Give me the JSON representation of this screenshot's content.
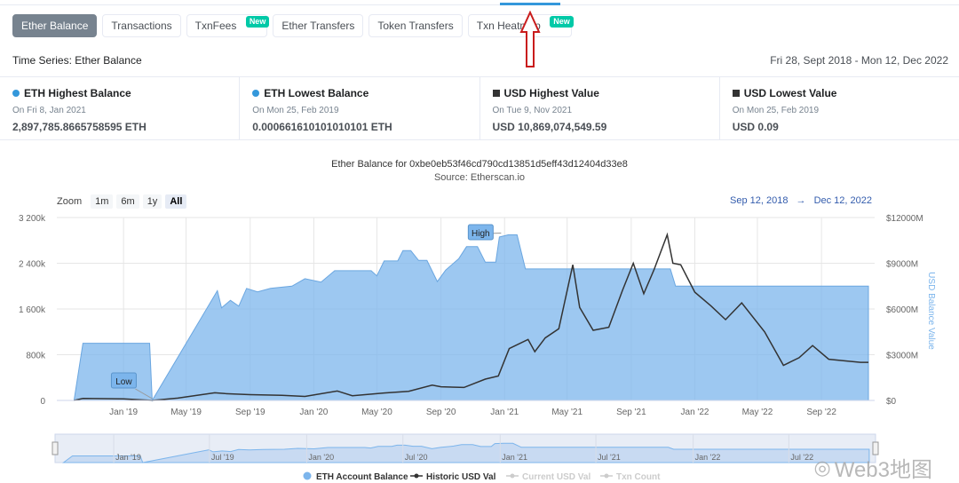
{
  "tabs": [
    {
      "label": "Ether Balance",
      "active": true
    },
    {
      "label": "Transactions"
    },
    {
      "label": "TxnFees",
      "badge": "New"
    },
    {
      "label": "Ether Transfers"
    },
    {
      "label": "Token Transfers"
    },
    {
      "label": "Txn Heatmap",
      "badge": "New"
    }
  ],
  "header": {
    "title": "Time Series: Ether Balance",
    "date_range": "Fri 28, Sept 2018 - Mon 12, Dec 2022"
  },
  "stats": [
    {
      "label": "ETH Highest Balance",
      "date": "On Fri 8, Jan 2021",
      "value": "2,897,785.8665758595 ETH",
      "marker": "dot",
      "color": "#3498db"
    },
    {
      "label": "ETH Lowest Balance",
      "date": "On Mon 25, Feb 2019",
      "value": "0.000661610101010101 ETH",
      "marker": "dot",
      "color": "#3498db"
    },
    {
      "label": "USD Highest Value",
      "date": "On Tue 9, Nov 2021",
      "value": "USD 10,869,074,549.59",
      "marker": "square",
      "color": "#333333"
    },
    {
      "label": "USD Lowest Value",
      "date": "On Mon 25, Feb 2019",
      "value": "USD 0.09",
      "marker": "square",
      "color": "#333333"
    }
  ],
  "chart_header": {
    "title": "Ether Balance for 0xbe0eb53f46cd790cd13851d5eff43d12404d33e8",
    "source": "Source: Etherscan.io"
  },
  "zoom": {
    "label": "Zoom",
    "buttons": [
      "1m",
      "6m",
      "1y",
      "All"
    ],
    "selected": "All"
  },
  "range": {
    "from": "Sep 12, 2018",
    "arrow": "→",
    "to": "Dec 12, 2022"
  },
  "chart_data": {
    "type": "area",
    "x_type": "date",
    "x_ticks": [
      "Jan '19",
      "May '19",
      "Sep '19",
      "Jan '20",
      "May '20",
      "Sep '20",
      "Jan '21",
      "May '21",
      "Sep '21",
      "Jan '22",
      "May '22",
      "Sep '22"
    ],
    "y_left": {
      "ticks": [
        "0",
        "800k",
        "1 600k",
        "2 400k",
        "3 200k"
      ],
      "range": [
        0,
        3200000
      ]
    },
    "y_right": {
      "ticks": [
        "$0",
        "$3000M",
        "$6000M",
        "$9000M",
        "$12000M"
      ],
      "range": [
        0,
        12000
      ],
      "label": "USD Balance Value"
    },
    "series": [
      {
        "name": "ETH Account Balance",
        "kind": "area",
        "color": "#7cb5ec",
        "points": [
          [
            "2018-09-28",
            0
          ],
          [
            "2018-10-15",
            1000000
          ],
          [
            "2019-02-20",
            1000000
          ],
          [
            "2019-02-25",
            0.0007
          ],
          [
            "2019-06-30",
            1920000
          ],
          [
            "2019-07-08",
            1620000
          ],
          [
            "2019-07-25",
            1750000
          ],
          [
            "2019-08-10",
            1650000
          ],
          [
            "2019-08-25",
            1960000
          ],
          [
            "2019-09-15",
            1900000
          ],
          [
            "2019-10-10",
            1960000
          ],
          [
            "2019-11-20",
            2000000
          ],
          [
            "2019-12-15",
            2130000
          ],
          [
            "2020-01-15",
            2070000
          ],
          [
            "2020-02-10",
            2270000
          ],
          [
            "2020-04-20",
            2270000
          ],
          [
            "2020-05-01",
            2180000
          ],
          [
            "2020-05-15",
            2440000
          ],
          [
            "2020-06-10",
            2440000
          ],
          [
            "2020-06-20",
            2620000
          ],
          [
            "2020-07-05",
            2620000
          ],
          [
            "2020-07-20",
            2450000
          ],
          [
            "2020-08-05",
            2450000
          ],
          [
            "2020-08-25",
            2080000
          ],
          [
            "2020-09-10",
            2280000
          ],
          [
            "2020-10-05",
            2480000
          ],
          [
            "2020-10-20",
            2690000
          ],
          [
            "2020-11-10",
            2690000
          ],
          [
            "2020-11-25",
            2420000
          ],
          [
            "2020-12-15",
            2420000
          ],
          [
            "2020-12-22",
            2860000
          ],
          [
            "2021-01-08",
            2897785
          ],
          [
            "2021-01-25",
            2897785
          ],
          [
            "2021-02-10",
            2300000
          ],
          [
            "2021-11-15",
            2300000
          ],
          [
            "2021-11-25",
            2000000
          ],
          [
            "2022-11-30",
            2000000
          ]
        ]
      },
      {
        "name": "Historic USD Val",
        "kind": "line",
        "color": "#333333",
        "axis": "right",
        "points": [
          [
            "2018-09-28",
            0
          ],
          [
            "2018-10-15",
            130
          ],
          [
            "2019-01-01",
            100
          ],
          [
            "2019-02-25",
            0.09
          ],
          [
            "2019-04-15",
            150
          ],
          [
            "2019-06-25",
            500
          ],
          [
            "2019-07-15",
            450
          ],
          [
            "2019-09-01",
            380
          ],
          [
            "2019-11-01",
            330
          ],
          [
            "2019-12-15",
            260
          ],
          [
            "2020-02-15",
            620
          ],
          [
            "2020-03-15",
            310
          ],
          [
            "2020-05-15",
            490
          ],
          [
            "2020-07-01",
            600
          ],
          [
            "2020-08-15",
            1000
          ],
          [
            "2020-09-01",
            900
          ],
          [
            "2020-10-15",
            850
          ],
          [
            "2020-11-25",
            1400
          ],
          [
            "2020-12-20",
            1600
          ],
          [
            "2021-01-10",
            3400
          ],
          [
            "2021-02-15",
            4000
          ],
          [
            "2021-02-28",
            3200
          ],
          [
            "2021-03-20",
            4100
          ],
          [
            "2021-04-15",
            4700
          ],
          [
            "2021-05-12",
            8900
          ],
          [
            "2021-05-25",
            6100
          ],
          [
            "2021-06-20",
            4600
          ],
          [
            "2021-07-20",
            4800
          ],
          [
            "2021-08-15",
            7200
          ],
          [
            "2021-09-05",
            9000
          ],
          [
            "2021-09-25",
            7000
          ],
          [
            "2021-10-15",
            8600
          ],
          [
            "2021-11-09",
            10869
          ],
          [
            "2021-11-20",
            9000
          ],
          [
            "2021-12-05",
            8900
          ],
          [
            "2022-01-01",
            7100
          ],
          [
            "2022-02-01",
            6200
          ],
          [
            "2022-03-01",
            5300
          ],
          [
            "2022-04-01",
            6400
          ],
          [
            "2022-05-15",
            4500
          ],
          [
            "2022-06-20",
            2300
          ],
          [
            "2022-07-20",
            2800
          ],
          [
            "2022-08-15",
            3600
          ],
          [
            "2022-09-15",
            2700
          ],
          [
            "2022-10-15",
            2600
          ],
          [
            "2022-11-15",
            2500
          ],
          [
            "2022-11-30",
            2500
          ]
        ]
      }
    ],
    "annotations": [
      {
        "text": "High",
        "x": "2021-01-08",
        "y": 2897785
      },
      {
        "text": "Low",
        "x": "2019-02-25",
        "y": 0.0007
      }
    ],
    "navigator": {
      "ticks": [
        "Jan '19",
        "Jul '19",
        "Jan '20",
        "Jul '20",
        "Jan '21",
        "Jul '21",
        "Jan '22",
        "Jul '22"
      ]
    },
    "legend": [
      {
        "name": "ETH Account Balance",
        "symbol": "dot",
        "color": "#7cb5ec",
        "visible": true
      },
      {
        "name": "Historic USD Val",
        "symbol": "line",
        "color": "#333333",
        "visible": true
      },
      {
        "name": "Current USD Val",
        "symbol": "line",
        "color": "#cccccc",
        "visible": false
      },
      {
        "name": "Txn Count",
        "symbol": "line",
        "color": "#cccccc",
        "visible": false
      }
    ],
    "legend_placement": "bottom-center",
    "grid": true
  },
  "watermark": {
    "text": "Web3地图",
    "icon": "wechat-icon"
  }
}
